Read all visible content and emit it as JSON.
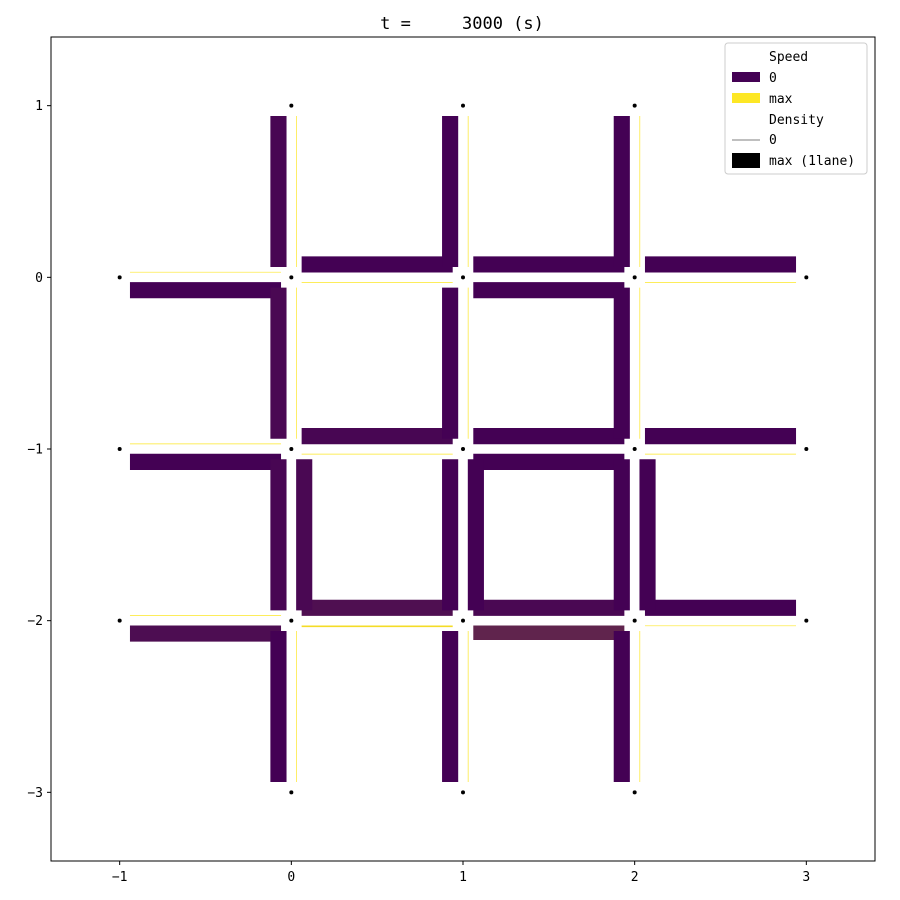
{
  "chart_data": {
    "type": "network",
    "title": "t =     3000 (s)",
    "xlim": [
      -1.4,
      3.4
    ],
    "ylim": [
      -3.4,
      1.4
    ],
    "xticks": [
      -1,
      0,
      1,
      2,
      3
    ],
    "yticks": [
      1,
      0,
      -1,
      -2,
      -3
    ],
    "xtick_labels": [
      "−1",
      "0",
      "1",
      "2",
      "3"
    ],
    "ytick_labels": [
      "1",
      "0",
      "−1",
      "−2",
      "−3"
    ],
    "grid": false,
    "legend": {
      "placement": "upper-right",
      "entries": [
        {
          "label": "Speed",
          "kind": "header"
        },
        {
          "label": "0",
          "kind": "speed",
          "color": "#440154"
        },
        {
          "label": "max",
          "kind": "speed",
          "color": "#fde725"
        },
        {
          "label": "Density",
          "kind": "header"
        },
        {
          "label": "0",
          "kind": "density-line",
          "color": "#000000"
        },
        {
          "label": "max (1lane)",
          "kind": "density-box",
          "color": "#000000"
        }
      ]
    },
    "colorscale": {
      "speed_0": "#440154",
      "speed_max": "#fde725"
    },
    "nodes": [
      [
        0,
        1
      ],
      [
        1,
        1
      ],
      [
        2,
        1
      ],
      [
        -1,
        0
      ],
      [
        0,
        0
      ],
      [
        1,
        0
      ],
      [
        2,
        0
      ],
      [
        3,
        0
      ],
      [
        -1,
        -1
      ],
      [
        0,
        -1
      ],
      [
        1,
        -1
      ],
      [
        2,
        -1
      ],
      [
        3,
        -1
      ],
      [
        -1,
        -2
      ],
      [
        0,
        -2
      ],
      [
        1,
        -2
      ],
      [
        2,
        -2
      ],
      [
        3,
        -2
      ],
      [
        0,
        -3
      ],
      [
        1,
        -3
      ],
      [
        2,
        -3
      ]
    ],
    "links": [
      {
        "from": [
          -1,
          0
        ],
        "to": [
          0,
          0
        ],
        "density": 1.0,
        "speed": 0.0
      },
      {
        "from": [
          0,
          0
        ],
        "to": [
          -1,
          0
        ],
        "density": 0.0,
        "speed": 1.0
      },
      {
        "from": [
          0,
          0
        ],
        "to": [
          1,
          0
        ],
        "density": 0.0,
        "speed": 1.0
      },
      {
        "from": [
          1,
          0
        ],
        "to": [
          0,
          0
        ],
        "density": 1.0,
        "speed": 0.0
      },
      {
        "from": [
          1,
          0
        ],
        "to": [
          2,
          0
        ],
        "density": 1.0,
        "speed": 0.0
      },
      {
        "from": [
          2,
          0
        ],
        "to": [
          1,
          0
        ],
        "density": 1.0,
        "speed": 0.0
      },
      {
        "from": [
          2,
          0
        ],
        "to": [
          3,
          0
        ],
        "density": 0.0,
        "speed": 1.0
      },
      {
        "from": [
          3,
          0
        ],
        "to": [
          2,
          0
        ],
        "density": 1.0,
        "speed": 0.0
      },
      {
        "from": [
          -1,
          -1
        ],
        "to": [
          0,
          -1
        ],
        "density": 1.0,
        "speed": 0.0
      },
      {
        "from": [
          0,
          -1
        ],
        "to": [
          -1,
          -1
        ],
        "density": 0.0,
        "speed": 1.0
      },
      {
        "from": [
          0,
          -1
        ],
        "to": [
          1,
          -1
        ],
        "density": 0.0,
        "speed": 1.0
      },
      {
        "from": [
          1,
          -1
        ],
        "to": [
          0,
          -1
        ],
        "density": 1.0,
        "speed": 0.02
      },
      {
        "from": [
          1,
          -1
        ],
        "to": [
          2,
          -1
        ],
        "density": 1.0,
        "speed": 0.0
      },
      {
        "from": [
          2,
          -1
        ],
        "to": [
          1,
          -1
        ],
        "density": 1.0,
        "speed": 0.0
      },
      {
        "from": [
          2,
          -1
        ],
        "to": [
          3,
          -1
        ],
        "density": 0.0,
        "speed": 1.0
      },
      {
        "from": [
          3,
          -1
        ],
        "to": [
          2,
          -1
        ],
        "density": 1.0,
        "speed": 0.0
      },
      {
        "from": [
          -1,
          -2
        ],
        "to": [
          0,
          -2
        ],
        "density": 1.0,
        "speed": 0.05
      },
      {
        "from": [
          0,
          -2
        ],
        "to": [
          -1,
          -2
        ],
        "density": 0.0,
        "speed": 1.0
      },
      {
        "from": [
          0,
          -2
        ],
        "to": [
          1,
          -2
        ],
        "density": 0.1,
        "speed": 0.95
      },
      {
        "from": [
          1,
          -2
        ],
        "to": [
          0,
          -2
        ],
        "density": 1.0,
        "speed": 0.06
      },
      {
        "from": [
          1,
          -2
        ],
        "to": [
          2,
          -2
        ],
        "density": 0.9,
        "speed": 0.15
      },
      {
        "from": [
          2,
          -2
        ],
        "to": [
          1,
          -2
        ],
        "density": 1.0,
        "speed": 0.03
      },
      {
        "from": [
          2,
          -2
        ],
        "to": [
          3,
          -2
        ],
        "density": 0.0,
        "speed": 1.0
      },
      {
        "from": [
          3,
          -2
        ],
        "to": [
          2,
          -2
        ],
        "density": 1.0,
        "speed": 0.0
      },
      {
        "from": [
          0,
          1
        ],
        "to": [
          0,
          0
        ],
        "density": 1.0,
        "speed": 0.02
      },
      {
        "from": [
          0,
          0
        ],
        "to": [
          0,
          1
        ],
        "density": 0.0,
        "speed": 1.0
      },
      {
        "from": [
          0,
          0
        ],
        "to": [
          0,
          -1
        ],
        "density": 1.0,
        "speed": 0.03
      },
      {
        "from": [
          0,
          -1
        ],
        "to": [
          0,
          0
        ],
        "density": 0.0,
        "speed": 1.0
      },
      {
        "from": [
          0,
          -1
        ],
        "to": [
          0,
          -2
        ],
        "density": 1.0,
        "speed": 0.02
      },
      {
        "from": [
          0,
          -2
        ],
        "to": [
          0,
          -1
        ],
        "density": 1.0,
        "speed": 0.03
      },
      {
        "from": [
          0,
          -2
        ],
        "to": [
          0,
          -3
        ],
        "density": 1.0,
        "speed": 0.0
      },
      {
        "from": [
          0,
          -3
        ],
        "to": [
          0,
          -2
        ],
        "density": 0.0,
        "speed": 1.0
      },
      {
        "from": [
          1,
          1
        ],
        "to": [
          1,
          0
        ],
        "density": 1.0,
        "speed": 0.0
      },
      {
        "from": [
          1,
          0
        ],
        "to": [
          1,
          1
        ],
        "density": 0.0,
        "speed": 1.0
      },
      {
        "from": [
          1,
          0
        ],
        "to": [
          1,
          -1
        ],
        "density": 1.0,
        "speed": 0.0
      },
      {
        "from": [
          1,
          -1
        ],
        "to": [
          1,
          0
        ],
        "density": 0.0,
        "speed": 1.0
      },
      {
        "from": [
          1,
          -1
        ],
        "to": [
          1,
          -2
        ],
        "density": 1.0,
        "speed": 0.0
      },
      {
        "from": [
          1,
          -2
        ],
        "to": [
          1,
          -1
        ],
        "density": 1.0,
        "speed": 0.0
      },
      {
        "from": [
          1,
          -2
        ],
        "to": [
          1,
          -3
        ],
        "density": 1.0,
        "speed": 0.0
      },
      {
        "from": [
          1,
          -3
        ],
        "to": [
          1,
          -2
        ],
        "density": 0.0,
        "speed": 1.0
      },
      {
        "from": [
          2,
          1
        ],
        "to": [
          2,
          0
        ],
        "density": 1.0,
        "speed": 0.0
      },
      {
        "from": [
          2,
          0
        ],
        "to": [
          2,
          1
        ],
        "density": 0.0,
        "speed": 1.0
      },
      {
        "from": [
          2,
          0
        ],
        "to": [
          2,
          -1
        ],
        "density": 1.0,
        "speed": 0.0
      },
      {
        "from": [
          2,
          -1
        ],
        "to": [
          2,
          0
        ],
        "density": 0.0,
        "speed": 1.0
      },
      {
        "from": [
          2,
          -1
        ],
        "to": [
          2,
          -2
        ],
        "density": 1.0,
        "speed": 0.0
      },
      {
        "from": [
          2,
          -2
        ],
        "to": [
          2,
          -1
        ],
        "density": 1.0,
        "speed": 0.0
      },
      {
        "from": [
          2,
          -2
        ],
        "to": [
          2,
          -3
        ],
        "density": 1.0,
        "speed": 0.0
      },
      {
        "from": [
          2,
          -3
        ],
        "to": [
          2,
          -2
        ],
        "density": 0.0,
        "speed": 1.0
      }
    ]
  }
}
